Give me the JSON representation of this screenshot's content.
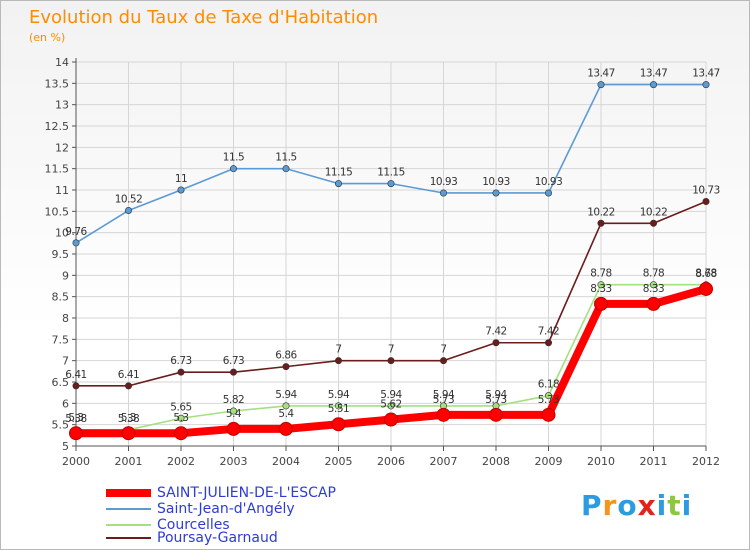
{
  "header": {
    "title": "Evolution du Taux de Taxe d'Habitation",
    "subtitle": "(en %)"
  },
  "logo": {
    "text": "Proxiti",
    "letters": [
      "P",
      "r",
      "o",
      "x",
      "i",
      "t",
      "i"
    ],
    "colors": [
      "#2d9be0",
      "#f7941d",
      "#2d9be0",
      "#e2231a",
      "#2d9be0",
      "#8dc63f",
      "#2d9be0"
    ]
  },
  "chart_data": {
    "type": "line",
    "title": "Evolution du Taux de Taxe d'Habitation",
    "ylabel": "(en %)",
    "x": [
      "2000",
      "2001",
      "2002",
      "2003",
      "2004",
      "2005",
      "2006",
      "2007",
      "2008",
      "2009",
      "2010",
      "2011",
      "2012"
    ],
    "ylim": [
      5,
      14
    ],
    "yticks": [
      "5",
      "5.5",
      "6",
      "6.5",
      "7",
      "7.5",
      "8",
      "8.5",
      "9",
      "9.5",
      "10",
      "10.5",
      "11",
      "11.5",
      "12",
      "12.5",
      "13",
      "13.5",
      "14"
    ],
    "grid": true,
    "series": [
      {
        "name": "SAINT-JULIEN-DE-L'ESCAP",
        "color": "#ff0000",
        "values": [
          5.3,
          5.3,
          5.3,
          5.4,
          5.4,
          5.51,
          5.62,
          5.73,
          5.73,
          5.73,
          8.33,
          8.33,
          8.68
        ],
        "labels": [
          "5.3",
          "5.3",
          "5.3",
          "5.4",
          "5.4",
          "5.51",
          "5.62",
          "5.73",
          "5.73",
          "5.73",
          "8.33",
          "8.33",
          "8.68"
        ]
      },
      {
        "name": "Saint-Jean-d'Angély",
        "color": "#5b9bd5",
        "values": [
          9.76,
          10.52,
          11,
          11.5,
          11.5,
          11.15,
          11.15,
          10.93,
          10.93,
          10.93,
          13.47,
          13.47,
          13.47
        ],
        "labels": [
          "9.76",
          "10.52",
          "11",
          "11.5",
          "11.5",
          "11.15",
          "11.15",
          "10.93",
          "10.93",
          "10.93",
          "13.47",
          "13.47",
          "13.47"
        ]
      },
      {
        "name": "Courcelles",
        "color": "#a4e07f",
        "values": [
          5.38,
          5.38,
          5.65,
          5.82,
          5.94,
          5.94,
          5.94,
          5.94,
          5.94,
          6.18,
          8.78,
          8.78,
          8.78
        ],
        "labels": [
          "5.38",
          "5.38",
          "5.65",
          "5.82",
          "5.94",
          "5.94",
          "5.94",
          "5.94",
          "5.94",
          "6.18",
          "8.78",
          "8.78",
          "8.78"
        ]
      },
      {
        "name": "Poursay-Garnaud",
        "color": "#6b1c1c",
        "values": [
          6.41,
          6.41,
          6.73,
          6.73,
          6.86,
          7,
          7,
          7,
          7.42,
          7.42,
          10.22,
          10.22,
          10.73
        ],
        "labels": [
          "6.41",
          "6.41",
          "6.73",
          "6.73",
          "6.86",
          "7",
          "7",
          "7",
          "7.42",
          "7.42",
          "10.22",
          "10.22",
          "10.73"
        ]
      }
    ]
  }
}
